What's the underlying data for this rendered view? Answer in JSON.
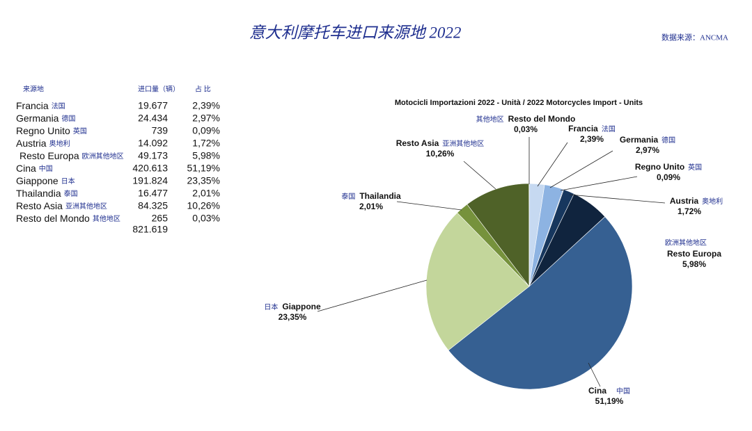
{
  "header": {
    "title": "意大利摩托车进口来源地 2022",
    "source": "数据来源：ANCMA"
  },
  "table": {
    "columns": [
      "来源地",
      "进口量（辆）",
      "占 比"
    ],
    "rows": [
      [
        "Francia",
        "法国",
        "19.677",
        "2,39%"
      ],
      [
        "Germania",
        "德国",
        "24.434",
        "2,97%"
      ],
      [
        "Regno Unito",
        "英国",
        "739",
        "0,09%"
      ],
      [
        "Austria",
        "奥地利",
        "14.092",
        "1,72%"
      ],
      [
        "Resto Europa",
        "欧洲其他地区",
        "49.173",
        "5,98%"
      ],
      [
        "Cina",
        "中国",
        "420.613",
        "51,19%"
      ],
      [
        "Giappone",
        "日本",
        "191.824",
        "23,35%"
      ],
      [
        "Thailandia",
        "泰国",
        "16.477",
        "2,01%"
      ],
      [
        "Resto Asia",
        "亚洲其他地区",
        "84.325",
        "10,26%"
      ],
      [
        "Resto del Mondo",
        "其他地区",
        "265",
        "0,03%"
      ]
    ],
    "total": "821.619"
  },
  "chart_data": {
    "type": "pie",
    "title": "Motocicli Importazioni 2022 - Unità / 2022 Motorcycles Import - Units",
    "categories": [
      "Francia",
      "Germania",
      "Regno Unito",
      "Austria",
      "Resto Europa",
      "Cina",
      "Giappone",
      "Thailandia",
      "Resto Asia",
      "Resto del Mondo"
    ],
    "categories_cn": [
      "法国",
      "德国",
      "英国",
      "奥地利",
      "欧洲其他地区",
      "中国",
      "日本",
      "泰国",
      "亚洲其他地区",
      "其他地区"
    ],
    "cn_colors": [
      "#1f2f8f",
      "#1f2f8f",
      "#1f2f8f",
      "#1f2f8f",
      "#1f2f8f",
      "#c00000",
      "#1f2f8f",
      "#1f2f8f",
      "#1f2f8f",
      "#1f2f8f"
    ],
    "values": [
      2.39,
      2.97,
      0.09,
      1.72,
      5.98,
      51.19,
      23.35,
      2.01,
      10.26,
      0.03
    ],
    "value_labels": [
      "2,39%",
      "2,97%",
      "0,09%",
      "1,72%",
      "5,98%",
      "51,19%",
      "23,35%",
      "2,01%",
      "10,26%",
      "0,03%"
    ],
    "colors": [
      "#c6d9f1",
      "#8db3e2",
      "#1f3864",
      "#17375e",
      "#10243e",
      "#366092",
      "#c3d69b",
      "#76923c",
      "#4f6228",
      "#dbe5f1"
    ]
  }
}
